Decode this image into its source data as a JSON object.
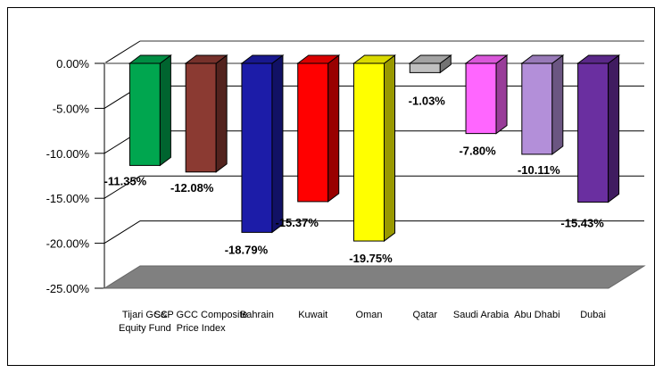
{
  "chart_data": {
    "type": "bar",
    "title": "",
    "xlabel": "",
    "ylabel": "",
    "ylim": [
      -25,
      0
    ],
    "yticks": [
      "0.00%",
      "-5.00%",
      "-10.00%",
      "-15.00%",
      "-20.00%",
      "-25.00%"
    ],
    "grid": true,
    "legend": "none",
    "categories": [
      [
        "Tijari GCC",
        "Equity Fund"
      ],
      [
        "S&P GCC Composite",
        "Price Index"
      ],
      [
        "Bahrain"
      ],
      [
        "Kuwait"
      ],
      [
        "Oman"
      ],
      [
        "Qatar"
      ],
      [
        "Saudi Arabia"
      ],
      [
        "Abu Dhabi"
      ],
      [
        "Dubai"
      ]
    ],
    "values": [
      -11.35,
      -12.08,
      -18.79,
      -15.37,
      -19.75,
      -1.03,
      -7.8,
      -10.11,
      -15.43
    ],
    "data_labels": [
      "-11.35%",
      "-12.08%",
      "-18.79%",
      "-15.37%",
      "-19.75%",
      "-1.03%",
      "-7.80%",
      "-10.11%",
      "-15.43%"
    ],
    "colors": [
      "#00a64f",
      "#8b3a32",
      "#1c1ca8",
      "#ff0000",
      "#ffff00",
      "#c0c0c0",
      "#ff66ff",
      "#b38fd9",
      "#6a2fa0"
    ],
    "floor_color": "#808080"
  }
}
